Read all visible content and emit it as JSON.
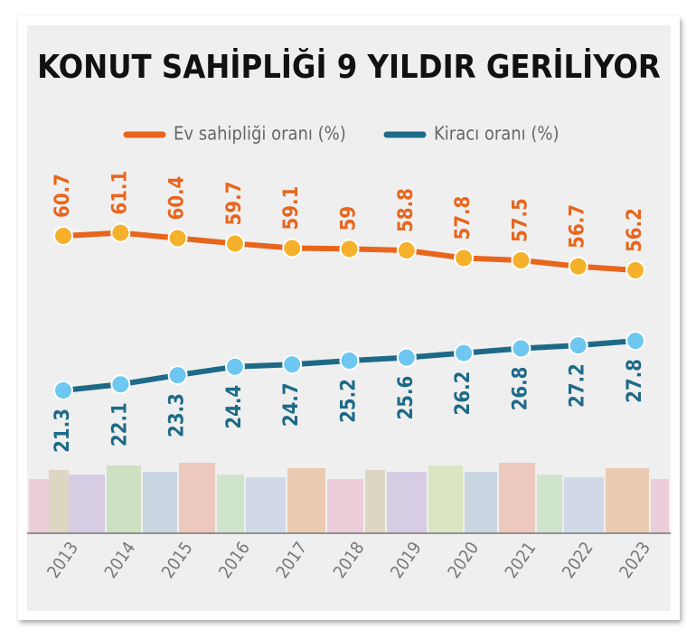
{
  "chart_data": {
    "type": "line",
    "title": "KONUT SAHİPLİĞİ 9 YILDIR GERİLİYOR",
    "categories": [
      "2013",
      "2014",
      "2015",
      "2016",
      "2017",
      "2018",
      "2019",
      "2020",
      "2021",
      "2022",
      "2023"
    ],
    "series": [
      {
        "name": "Ev sahipliği oranı (%)",
        "color": "#e8651c",
        "marker_color": "#f6b12c",
        "values": [
          60.7,
          61.1,
          60.4,
          59.7,
          59.1,
          59,
          58.8,
          57.8,
          57.5,
          56.7,
          56.2
        ]
      },
      {
        "name": "Kiracı oranı (%)",
        "color": "#1d6a88",
        "marker_color": "#6ec7f0",
        "values": [
          21.3,
          22.1,
          23.3,
          24.4,
          24.7,
          25.2,
          25.6,
          26.2,
          26.8,
          27.2,
          27.8
        ]
      }
    ]
  }
}
